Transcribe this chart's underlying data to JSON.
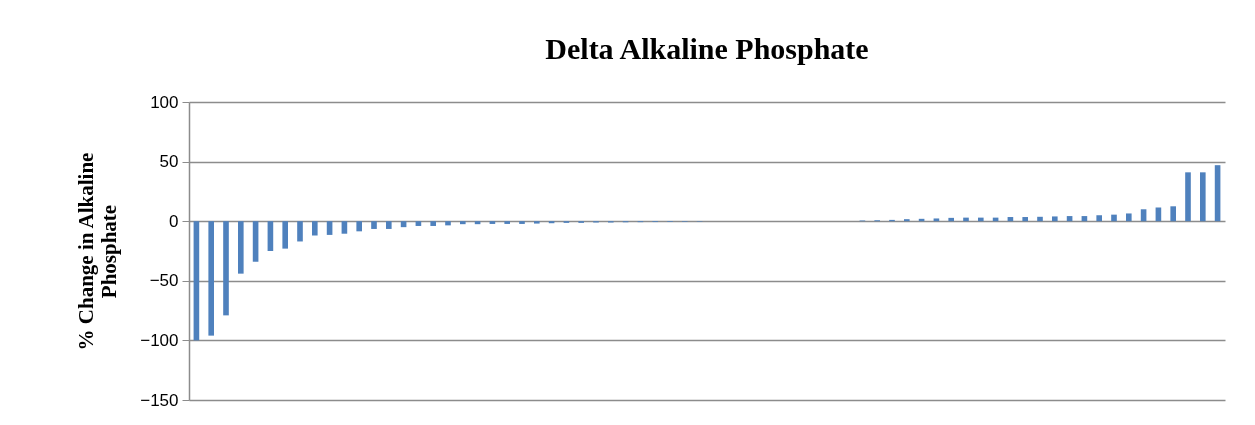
{
  "chart_data": {
    "type": "bar",
    "title": "Delta Alkaline Phosphate",
    "ylabel": "% Change in Alkaline Phosphate",
    "categories": [
      null,
      null,
      null,
      null,
      null,
      null,
      null,
      null,
      null,
      null,
      null,
      null,
      null,
      null,
      null,
      null,
      null,
      null,
      null,
      null,
      null,
      null,
      null,
      null,
      null,
      null,
      null,
      null,
      null,
      null,
      null,
      null,
      null,
      null,
      null,
      null,
      null,
      null,
      null,
      null,
      null,
      null,
      null,
      null,
      null,
      null,
      null,
      null,
      null,
      null,
      null,
      null,
      null,
      null,
      null,
      null,
      null,
      null,
      null,
      null,
      null,
      null,
      null,
      null,
      null,
      null,
      null,
      null,
      null,
      null
    ],
    "values": [
      -100,
      -96,
      -79,
      -44,
      -34,
      -25,
      -23,
      -17,
      -12,
      -11.5,
      -10.5,
      -8.5,
      -6.5,
      -6.5,
      -5,
      -4,
      -4,
      -3.5,
      -2.5,
      -2.5,
      -2.3,
      -2.3,
      -2.3,
      -2,
      -1.7,
      -1.4,
      -1.4,
      -1.1,
      -1.1,
      -0.9,
      -0.8,
      -0.7,
      -0.6,
      -0.5,
      -0.4,
      0,
      0,
      0,
      0,
      0,
      0,
      0,
      0,
      0,
      0,
      0.6,
      0.8,
      1.1,
      1.7,
      2,
      2.3,
      2.8,
      3,
      3,
      3,
      3.5,
      3.5,
      3.7,
      4,
      4.3,
      4.3,
      5,
      5.5,
      6.5,
      10,
      11.5,
      12.5,
      41,
      41,
      47
    ],
    "color": "#4f81bd",
    "ylim": [
      -150,
      100
    ],
    "yticks": [
      -150,
      -100,
      -50,
      0,
      50,
      100
    ],
    "grid": "y",
    "tick_labels": "y"
  }
}
